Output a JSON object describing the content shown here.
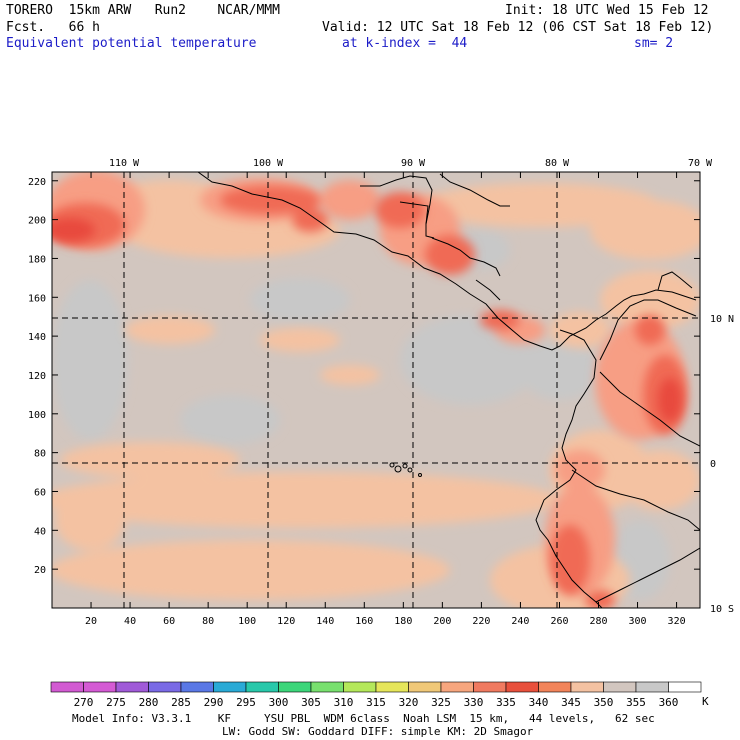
{
  "header": {
    "left_line1": "TORERO  15km ARW   Run2    NCAR/MMM",
    "left_line2": "Fcst.   66 h",
    "right_line1": "Init: 18 UTC Wed 15 Feb 12",
    "right_line2": "Valid: 12 UTC Sat 18 Feb 12 (06 CST Sat 18 Feb 12)",
    "field_name": "Equivalent potential temperature",
    "level": "at k-index =  44",
    "smoothing": "sm= 2"
  },
  "map": {
    "lon_labels": [
      "110 W",
      "100 W",
      "90 W",
      "80 W",
      "70 W"
    ],
    "lat_labels": [
      "10 N",
      "0",
      "10 S"
    ],
    "y_grid_labels": [
      "220",
      "200",
      "180",
      "160",
      "140",
      "120",
      "100",
      "80",
      "60",
      "40",
      "20"
    ],
    "x_grid_labels": [
      "20",
      "40",
      "60",
      "80",
      "100",
      "120",
      "140",
      "160",
      "180",
      "200",
      "220",
      "240",
      "260",
      "280",
      "300",
      "320"
    ],
    "colors": {
      "ocean": "#d2c6bf",
      "cool": "#c8c8c8",
      "warm": "#f4c2a2",
      "warmer": "#f79e84",
      "hot": "#f06a55",
      "hottest": "#e84a3c",
      "coast": "#000000",
      "grid_line": "#000000"
    }
  },
  "colorbar": {
    "labels": [
      "270",
      "275",
      "280",
      "285",
      "290",
      "295",
      "300",
      "305",
      "310",
      "315",
      "320",
      "325",
      "330",
      "335",
      "340",
      "345",
      "350",
      "355",
      "360"
    ],
    "unit": "K",
    "colors": [
      "#d45ad4",
      "#a05ad8",
      "#7a6ae6",
      "#5a78e6",
      "#2aaad6",
      "#28c8aa",
      "#3cd67a",
      "#78e06e",
      "#b4e85a",
      "#e6e65a",
      "#f0c878",
      "#f7a67e",
      "#f07a60",
      "#e8503c",
      "#f2845a",
      "#f4c2a2",
      "#d2c6bf",
      "#c8c8c8",
      "#ffffff"
    ]
  },
  "footer": {
    "line1": "Model Info: V3.3.1    KF     YSU PBL  WDM 6class  Noah LSM  15 km,   44 levels,   62 sec",
    "line2": "LW: Godd SW: Goddard DIFF: simple KM: 2D Smagor"
  }
}
